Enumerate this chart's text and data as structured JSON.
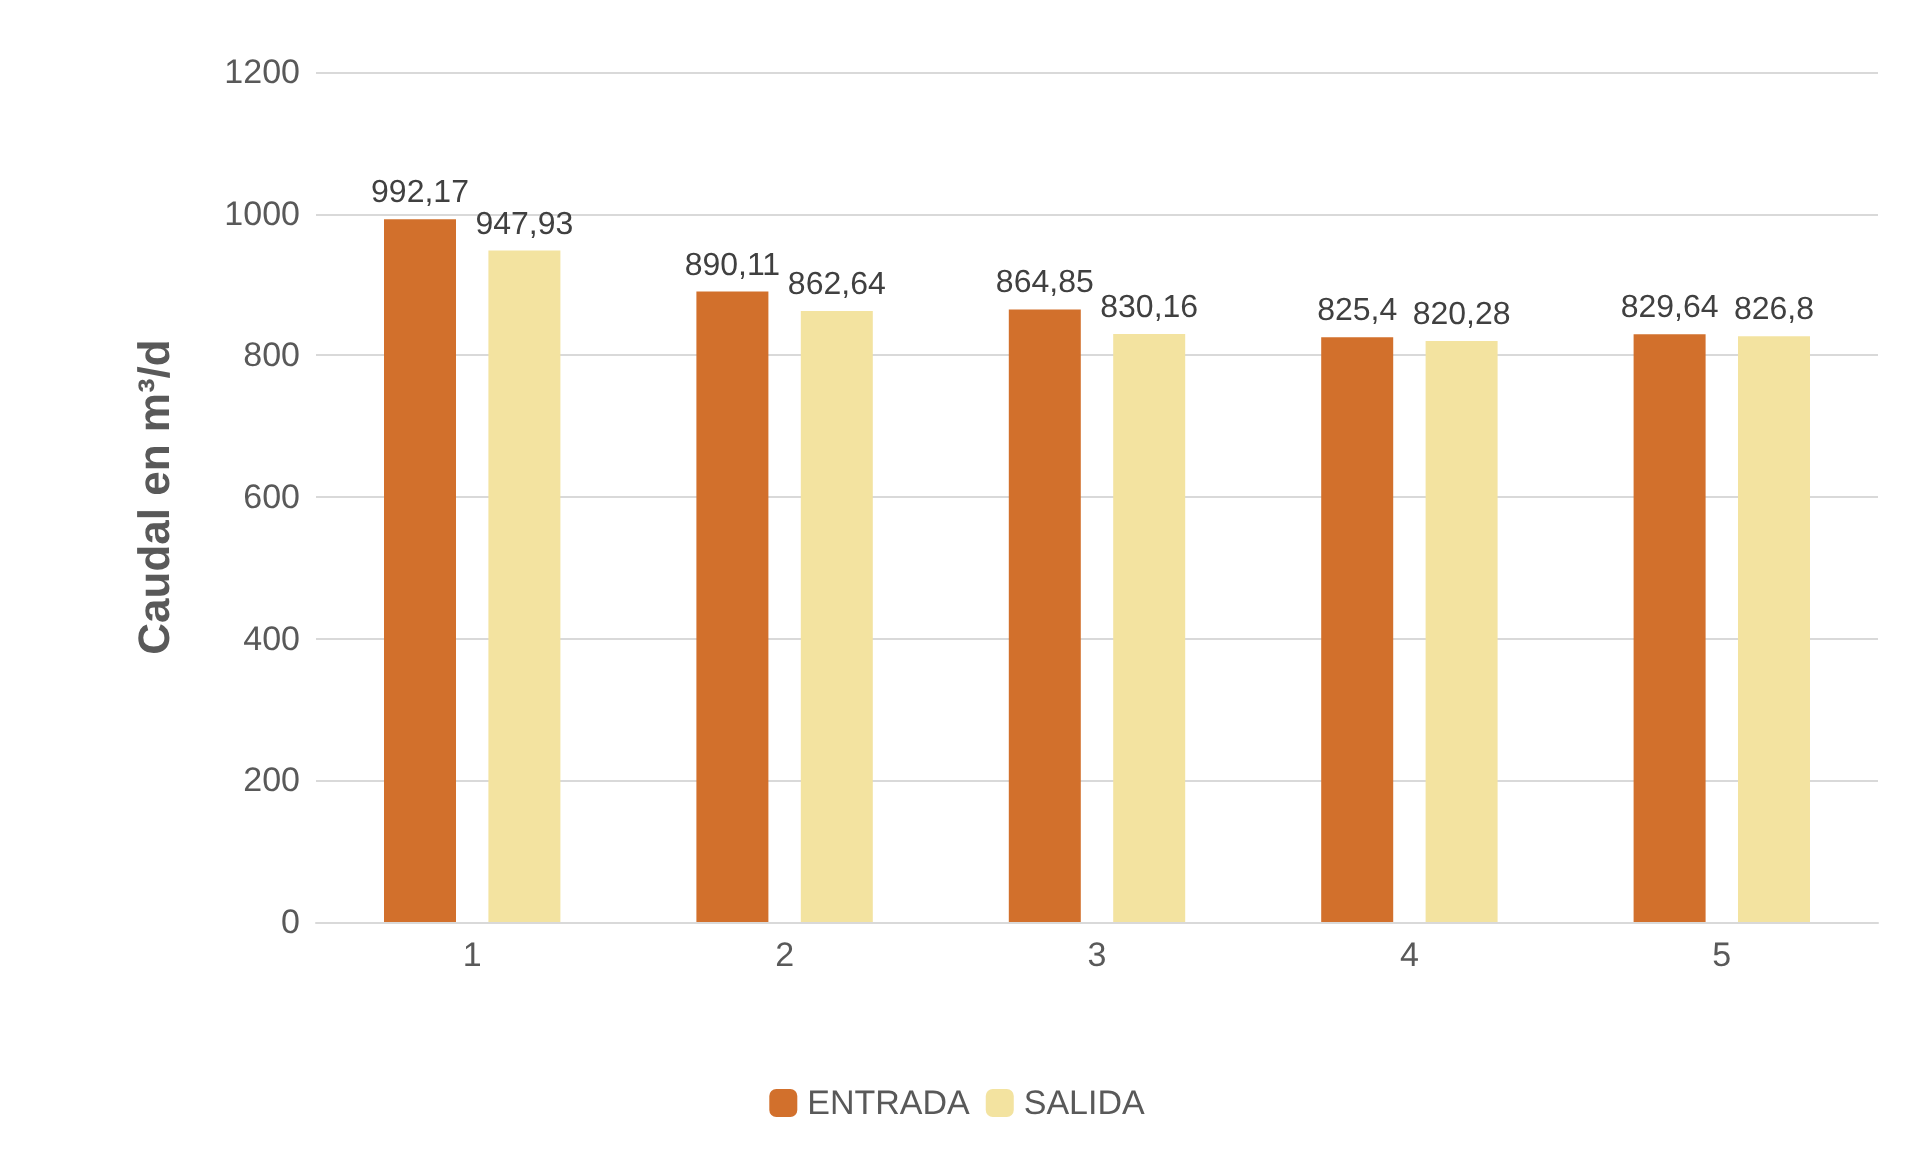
{
  "chart_data": {
    "type": "bar",
    "ylabel": "Caudal en m³/d",
    "categories": [
      "1",
      "2",
      "3",
      "4",
      "5"
    ],
    "series": [
      {
        "name": "ENTRADA",
        "color": "#d2702c",
        "values": [
          992.17,
          890.11,
          864.85,
          825.4,
          829.64
        ],
        "value_labels": [
          "992,17",
          "890,11",
          "864,85",
          "825,4",
          "829,64"
        ]
      },
      {
        "name": "SALIDA",
        "color": "#f3e3a0",
        "values": [
          947.93,
          862.64,
          830.16,
          820.28,
          826.8
        ],
        "value_labels": [
          "947,93",
          "862,64",
          "830,16",
          "820,28",
          "826,8"
        ]
      }
    ],
    "ylim": [
      0,
      1200
    ],
    "yticks": [
      0,
      200,
      400,
      600,
      800,
      1000,
      1200
    ],
    "grid": "y",
    "legend": "bottom"
  }
}
